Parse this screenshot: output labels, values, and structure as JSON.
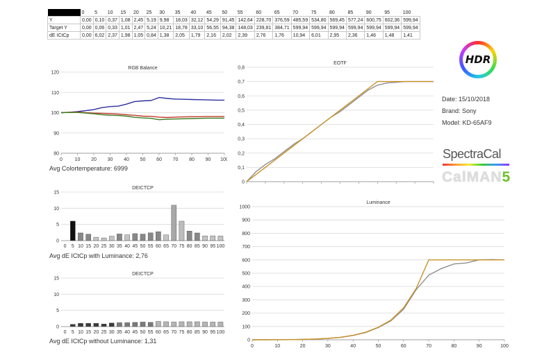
{
  "table": {
    "header": [
      "",
      "0",
      "5",
      "10",
      "15",
      "20",
      "25",
      "30",
      "35",
      "40",
      "45",
      "50",
      "55",
      "60",
      "65",
      "70",
      "75",
      "80",
      "85",
      "90",
      "95",
      "100"
    ],
    "rows": [
      {
        "label": "Y",
        "values": [
          "0,00",
          "0,10",
          "0,37",
          "1,08",
          "2,45",
          "5,19",
          "9,98",
          "18,03",
          "32,12",
          "54,29",
          "91,45",
          "142,64",
          "228,70",
          "376,59",
          "485,59",
          "534,80",
          "569,45",
          "577,24",
          "600,75",
          "602,36",
          "599,94"
        ]
      },
      {
        "label": "Target Y",
        "values": [
          "0,00",
          "0,06",
          "0,33",
          "1,01",
          "2,47",
          "5,24",
          "10,21",
          "18,78",
          "33,10",
          "56,55",
          "94,38",
          "148,03",
          "239,81",
          "384,71",
          "599,94",
          "599,94",
          "599,94",
          "599,94",
          "599,94",
          "599,94",
          "599,94"
        ]
      },
      {
        "label": "dE ICtCp",
        "values": [
          "0,00",
          "6,02",
          "2,37",
          "1,98",
          "1,05",
          "0,84",
          "1,38",
          "2,05",
          "1,79",
          "2,16",
          "2,02",
          "2,39",
          "2,76",
          "1,76",
          "10,94",
          "6,01",
          "2,95",
          "2,36",
          "1,46",
          "1,48",
          "1,41"
        ]
      }
    ]
  },
  "info": {
    "date": "Date: 15/10/2018",
    "brand": "Brand: Sony",
    "model": "Model: KD-65AF9"
  },
  "logos": {
    "hdr": "HDR",
    "spectracal": "SpectraCal",
    "calman": "CalMAN",
    "calman_version": "5"
  },
  "captions": {
    "rgb": "Avg Colortemperature: 6999",
    "de_lum": "Avg dE ICtCp with Luminance: 2,76",
    "de_nolum": "Avg dE ICtCp without Luminance: 1,31"
  },
  "colors": {
    "red": "#c0392b",
    "green": "#3a7d1e",
    "blue": "#2b2f9e",
    "target": "#c8922a",
    "measured": "#8f8f8f"
  },
  "chart_data": [
    {
      "id": "rgb",
      "type": "line",
      "title": "RGB Balance",
      "x": [
        0,
        5,
        10,
        15,
        20,
        25,
        30,
        35,
        40,
        45,
        50,
        55,
        60,
        65,
        70,
        75,
        80,
        85,
        90,
        95,
        100
      ],
      "xticks": [
        0,
        10,
        20,
        30,
        40,
        50,
        60,
        70,
        80,
        90,
        100
      ],
      "yticks": [
        80,
        90,
        100,
        110,
        120
      ],
      "xlim": [
        0,
        100
      ],
      "ylim": [
        80,
        120
      ],
      "series": [
        {
          "key": "blue",
          "values": [
            100,
            100.2,
            100.5,
            101,
            101.5,
            102.5,
            103,
            103.2,
            104.2,
            105.5,
            105.8,
            106,
            107.5,
            107,
            106.7,
            106.6,
            106.5,
            106.4,
            106.3,
            106.2,
            106.2
          ]
        },
        {
          "key": "red",
          "values": [
            100,
            100.2,
            100.3,
            100,
            99.8,
            99.7,
            99.5,
            99.3,
            99,
            98.7,
            98.3,
            98.2,
            97.8,
            97.6,
            97.8,
            97.9,
            98,
            98,
            98.1,
            98.1,
            98.1
          ]
        },
        {
          "key": "green",
          "values": [
            100,
            100.1,
            100.1,
            99.8,
            99.5,
            99,
            98.7,
            98.6,
            98.3,
            97.7,
            97.4,
            97.2,
            96.5,
            96.8,
            96.9,
            97,
            97.1,
            97.2,
            97.3,
            97.3,
            97.3
          ]
        }
      ],
      "grid": true
    },
    {
      "id": "eotf",
      "type": "line",
      "title": "EOTF",
      "x": [
        0,
        5,
        10,
        15,
        20,
        25,
        30,
        35,
        40,
        45,
        50,
        55,
        60,
        65,
        70,
        75,
        80,
        85,
        90,
        95,
        100
      ],
      "xticks": [
        0,
        10,
        20,
        30,
        40,
        50,
        60,
        70,
        80,
        90,
        100
      ],
      "yticks": [
        0,
        0.1,
        0.2,
        0.3,
        0.4,
        0.5,
        0.6,
        0.7,
        0.8
      ],
      "ytick_labels": [
        "0",
        "0,1",
        "0,2",
        "0,3",
        "0,4",
        "0,5",
        "0,6",
        "0,7",
        "0,8"
      ],
      "xlim": [
        0,
        100
      ],
      "ylim": [
        0,
        0.8
      ],
      "series": [
        {
          "key": "measured",
          "values": [
            0,
            0.07,
            0.12,
            0.16,
            0.21,
            0.26,
            0.3,
            0.35,
            0.4,
            0.45,
            0.49,
            0.54,
            0.59,
            0.64,
            0.675,
            0.69,
            0.695,
            0.7,
            0.7,
            0.7,
            0.7
          ]
        },
        {
          "key": "target",
          "values": [
            0,
            0.05,
            0.1,
            0.15,
            0.2,
            0.25,
            0.3,
            0.35,
            0.4,
            0.45,
            0.5,
            0.55,
            0.6,
            0.65,
            0.7,
            0.7,
            0.7,
            0.7,
            0.7,
            0.7,
            0.7
          ]
        }
      ],
      "grid": true
    },
    {
      "id": "de_lum",
      "type": "bar",
      "title": "DEICTCP",
      "categories": [
        "0",
        "5",
        "10",
        "15",
        "20",
        "25",
        "30",
        "35",
        "40",
        "45",
        "50",
        "55",
        "60",
        "65",
        "70",
        "75",
        "80",
        "85",
        "90",
        "95",
        "100"
      ],
      "values": [
        0,
        6.02,
        2.37,
        1.98,
        1.05,
        0.84,
        1.38,
        2.05,
        1.79,
        2.16,
        2.02,
        2.39,
        2.76,
        1.76,
        10.94,
        6.01,
        2.95,
        2.36,
        1.46,
        1.48,
        1.41
      ],
      "yticks": [
        0,
        5,
        10,
        15
      ],
      "ylim": [
        0,
        15
      ],
      "grid": true
    },
    {
      "id": "luminance",
      "type": "line",
      "title": "Luminance",
      "x": [
        0,
        5,
        10,
        15,
        20,
        25,
        30,
        35,
        40,
        45,
        50,
        55,
        60,
        65,
        70,
        75,
        80,
        85,
        90,
        95,
        100
      ],
      "xticks": [
        0,
        10,
        20,
        30,
        40,
        50,
        60,
        70,
        80,
        90,
        100
      ],
      "yticks": [
        0,
        100,
        200,
        300,
        400,
        500,
        600,
        700,
        800,
        900,
        1000
      ],
      "xlim": [
        0,
        100
      ],
      "ylim": [
        0,
        1000
      ],
      "series": [
        {
          "key": "measured",
          "values": [
            0,
            0.1,
            0.37,
            1.08,
            2.45,
            5.19,
            9.98,
            18.03,
            32.12,
            54.29,
            91.45,
            142.64,
            228.7,
            376.59,
            485.59,
            534.8,
            569.45,
            577.24,
            600.75,
            602.36,
            599.94
          ]
        },
        {
          "key": "target",
          "values": [
            0,
            0.06,
            0.33,
            1.01,
            2.47,
            5.24,
            10.21,
            18.78,
            33.1,
            56.55,
            94.38,
            148.03,
            239.81,
            384.71,
            599.94,
            599.94,
            599.94,
            599.94,
            599.94,
            599.94,
            599.94
          ]
        }
      ],
      "grid": true
    },
    {
      "id": "de_nolum",
      "type": "bar",
      "title": "DEICTCP",
      "categories": [
        "0",
        "5",
        "10",
        "15",
        "20",
        "25",
        "30",
        "35",
        "40",
        "45",
        "50",
        "55",
        "60",
        "65",
        "70",
        "75",
        "80",
        "85",
        "90",
        "95",
        "100"
      ],
      "values": [
        0,
        0.7,
        1.0,
        1.0,
        1.0,
        0.8,
        1.1,
        1.2,
        1.2,
        1.3,
        1.4,
        1.3,
        1.6,
        1.5,
        1.4,
        1.5,
        1.5,
        1.5,
        1.4,
        1.4,
        1.4
      ],
      "yticks": [
        0,
        5,
        10,
        15
      ],
      "ylim": [
        0,
        15
      ],
      "grid": true
    }
  ]
}
